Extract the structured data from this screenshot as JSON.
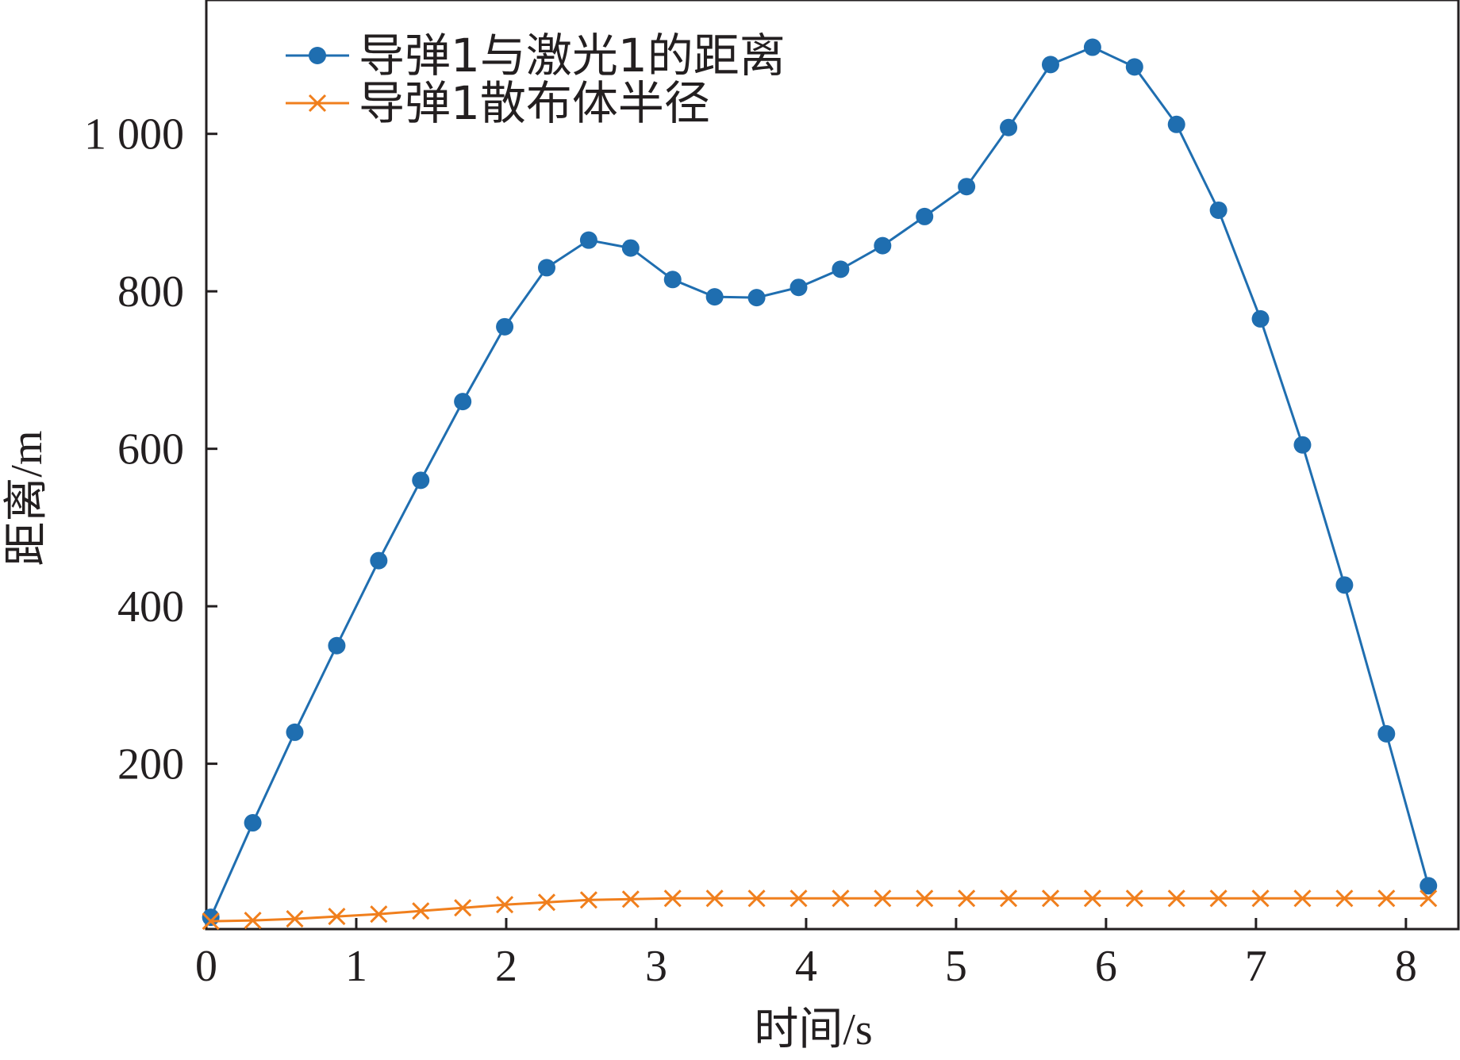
{
  "chart_data": {
    "type": "line",
    "xlabel": "时间/s",
    "ylabel": "距离/m",
    "xlim": [
      0,
      8.35
    ],
    "ylim": [
      -10,
      1170
    ],
    "xticks": [
      {
        "value": 0,
        "label": "0"
      },
      {
        "value": 1,
        "label": "1"
      },
      {
        "value": 2,
        "label": "2"
      },
      {
        "value": 3,
        "label": "3"
      },
      {
        "value": 4,
        "label": "4"
      },
      {
        "value": 5,
        "label": "5"
      },
      {
        "value": 6,
        "label": "6"
      },
      {
        "value": 7,
        "label": "7"
      },
      {
        "value": 8,
        "label": "8"
      }
    ],
    "yticks": [
      {
        "value": 200,
        "label": "200"
      },
      {
        "value": 400,
        "label": "400"
      },
      {
        "value": 600,
        "label": "600"
      },
      {
        "value": 800,
        "label": "800"
      },
      {
        "value": 1000,
        "label": "1 000"
      }
    ],
    "grid": false,
    "legend_position": "top-left",
    "series": [
      {
        "name": "导弹1与激光1的距离",
        "color": "#1f6eb0",
        "marker": "circle",
        "x": [
          0.03,
          0.31,
          0.59,
          0.87,
          1.15,
          1.43,
          1.71,
          1.99,
          2.27,
          2.55,
          2.83,
          3.11,
          3.39,
          3.67,
          3.95,
          4.23,
          4.51,
          4.79,
          5.07,
          5.35,
          5.63,
          5.91,
          6.19,
          6.47,
          6.75,
          7.03,
          7.31,
          7.59,
          7.87,
          8.15
        ],
        "y": [
          5,
          125,
          240,
          350,
          458,
          560,
          660,
          755,
          830,
          865,
          855,
          815,
          793,
          792,
          805,
          828,
          858,
          895,
          933,
          1008,
          1088,
          1110,
          1085,
          1012,
          903,
          765,
          605,
          427,
          238,
          45
        ]
      },
      {
        "name": "导弹1散布体半径",
        "color": "#f07f1d",
        "marker": "x",
        "x": [
          0.03,
          0.31,
          0.59,
          0.87,
          1.15,
          1.43,
          1.71,
          1.99,
          2.27,
          2.55,
          2.83,
          3.11,
          3.39,
          3.67,
          3.95,
          4.23,
          4.51,
          4.79,
          5.07,
          5.35,
          5.63,
          5.91,
          6.19,
          6.47,
          6.75,
          7.03,
          7.31,
          7.59,
          7.87,
          8.15
        ],
        "y": [
          0,
          1,
          3,
          6,
          9,
          13,
          17,
          21,
          24,
          27,
          28,
          29,
          29,
          29,
          29,
          29,
          29,
          29,
          29,
          29,
          29,
          29,
          29,
          29,
          29,
          29,
          29,
          29,
          29,
          29
        ]
      }
    ]
  }
}
